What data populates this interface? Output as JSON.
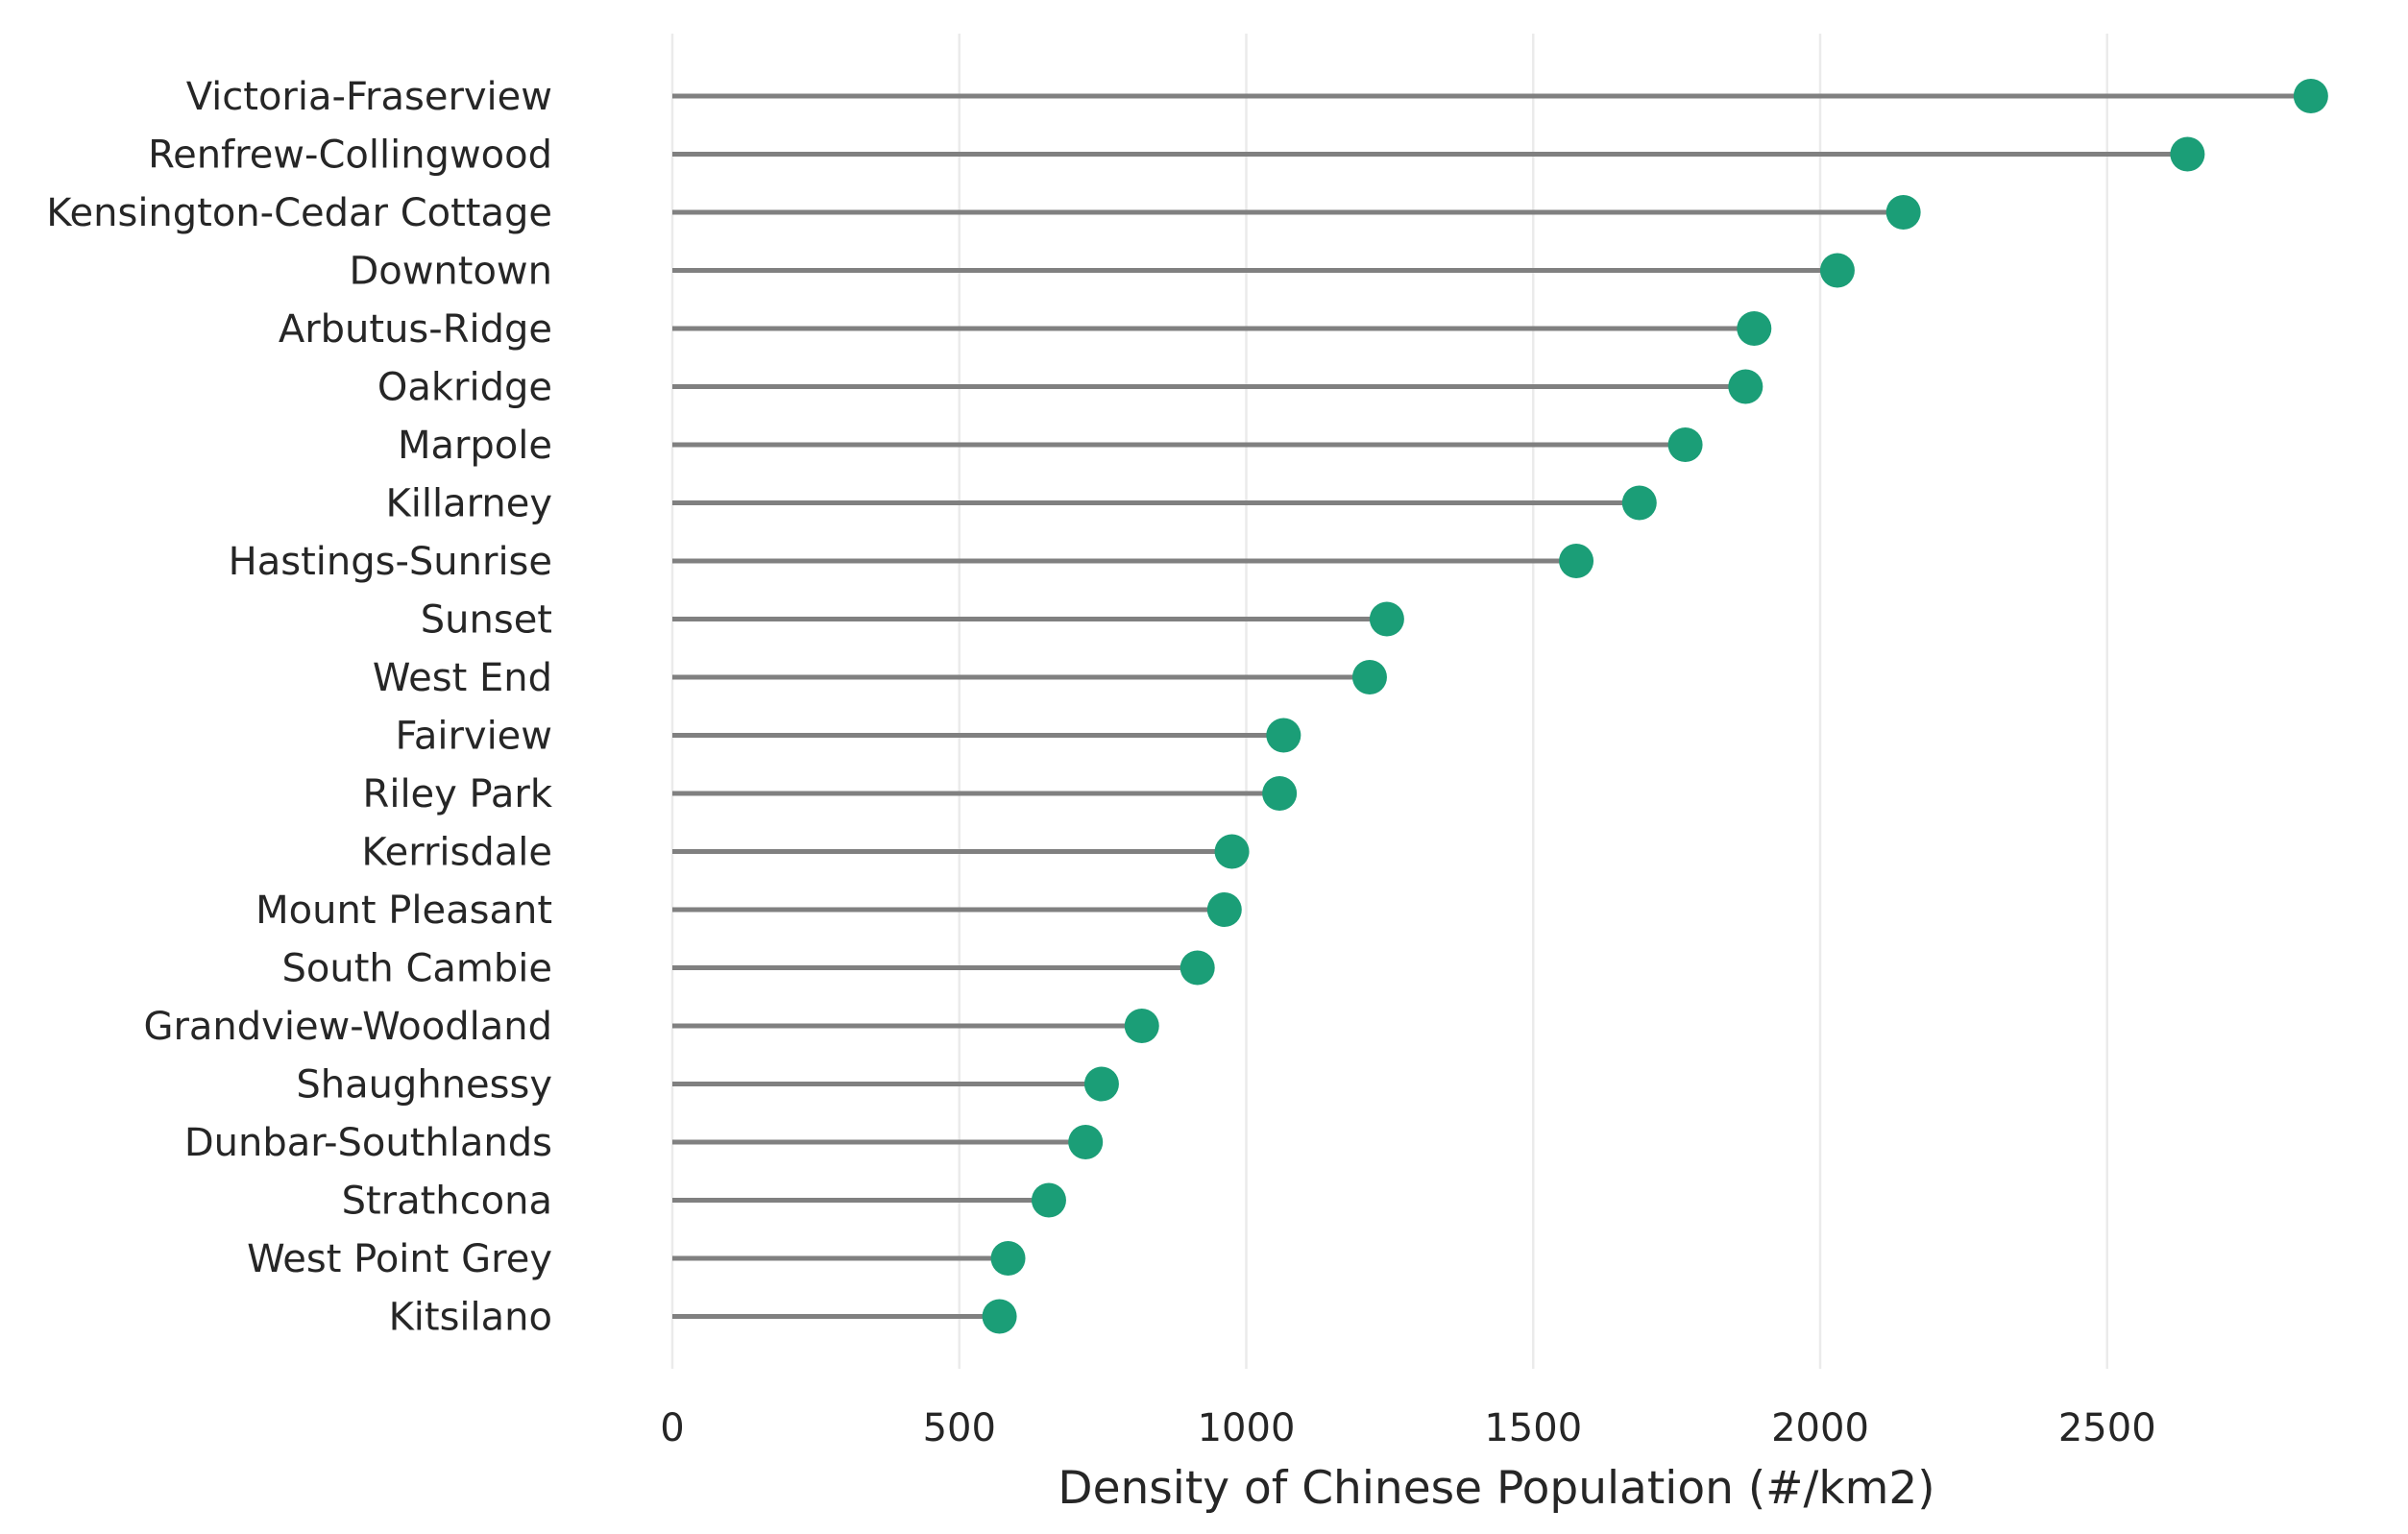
{
  "colors": {
    "marker": "#1b9e77",
    "stem": "#808080",
    "grid": "#ebebeb",
    "text": "#262626"
  },
  "chart_data": {
    "type": "lollipop",
    "orientation": "horizontal",
    "title": "",
    "xlabel": "Density of Chinese Population (#/km2)",
    "ylabel": "",
    "xlim": [
      0,
      2950
    ],
    "xticks": [
      0,
      500,
      1000,
      1500,
      2000,
      2500
    ],
    "xtick_labels": [
      "0",
      "500",
      "1000",
      "1500",
      "2000",
      "2500"
    ],
    "grid": "vertical",
    "legend": "none",
    "categories": [
      "Victoria-Fraserview",
      "Renfrew-Collingwood",
      "Kensington-Cedar Cottage",
      "Downtown",
      "Arbutus-Ridge",
      "Oakridge",
      "Marpole",
      "Killarney",
      "Hastings-Sunrise",
      "Sunset",
      "West End",
      "Fairview",
      "Riley Park",
      "Kerrisdale",
      "Mount Pleasant",
      "South Cambie",
      "Grandview-Woodland",
      "Shaughnessy",
      "Dunbar-Southlands",
      "Strathcona",
      "West Point Grey",
      "Kitsilano"
    ],
    "values": [
      2855,
      2640,
      2145,
      2030,
      1885,
      1870,
      1765,
      1685,
      1575,
      1245,
      1215,
      1065,
      1058,
      975,
      962,
      915,
      818,
      748,
      720,
      656,
      585,
      570
    ]
  }
}
